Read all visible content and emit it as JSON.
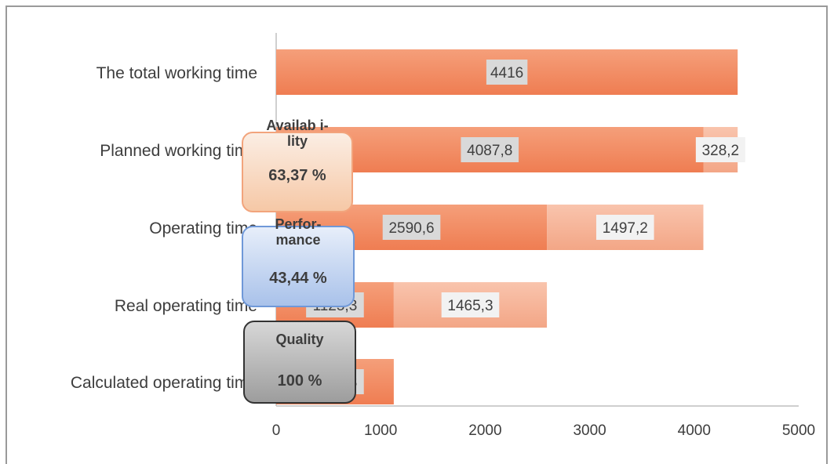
{
  "chart_data": {
    "type": "bar",
    "orientation": "horizontal",
    "stacked": true,
    "categories": [
      "The total working time",
      "Planned working time",
      "Operating time",
      "Real operating time",
      "Calculated operating time"
    ],
    "series": [
      {
        "color": "#f0875f",
        "values": [
          4416,
          4087.8,
          2590.6,
          1125.3,
          1125.3
        ],
        "labels": [
          "4416",
          "4087,8",
          "2590,6",
          "1125,3",
          "1125,3"
        ]
      },
      {
        "color": "#f7b59a",
        "values": [
          0,
          328.2,
          1497.2,
          1465.3,
          0
        ],
        "labels": [
          "",
          "328,2",
          "1497,2",
          "1465,3",
          ""
        ]
      }
    ],
    "xlim": [
      0,
      5000
    ],
    "xticks": [
      "0",
      "1000",
      "2000",
      "3000",
      "4000",
      "5000"
    ],
    "grid": false,
    "legend": "none",
    "callouts": [
      {
        "id": "availability",
        "title": "Availab i-lity",
        "value": "63,37 %"
      },
      {
        "id": "performance",
        "title": "Perfor-mance",
        "value": "43,44 %"
      },
      {
        "id": "quality",
        "title": "Quality",
        "value": "100 %"
      }
    ]
  }
}
